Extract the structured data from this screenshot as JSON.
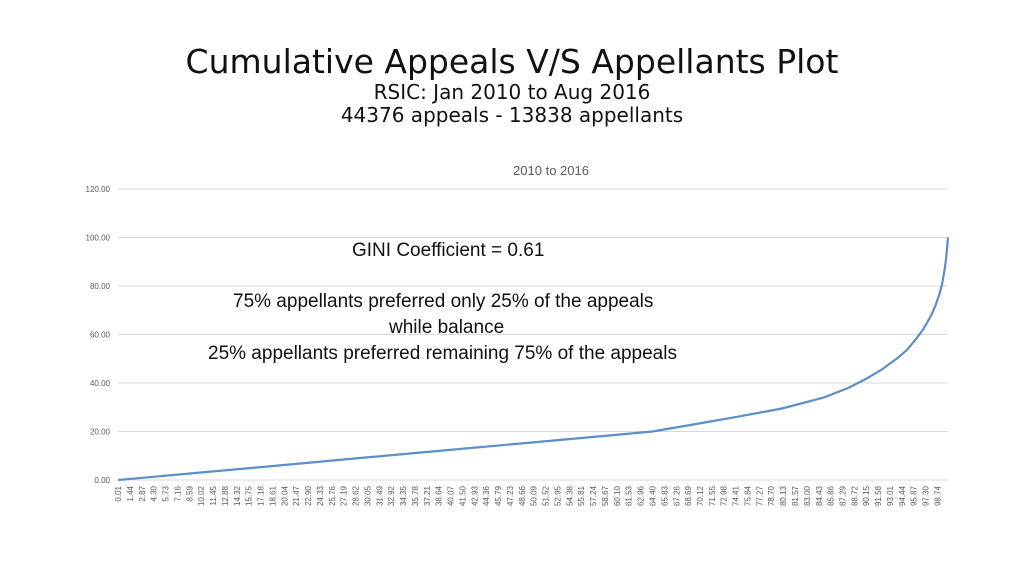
{
  "slide": {
    "title": "Cumulative Appeals V/S Appellants Plot",
    "subtitle_line1": "RSIC: Jan 2010 to Aug 2016",
    "subtitle_line2": "44376 appeals - 13838 appellants"
  },
  "annotations": {
    "gini": "GINI Coefficient = 0.61",
    "line1": "75% appellants preferred only 25% of the appeals",
    "line2": "while balance",
    "line3": "25% appellants preferred remaining 75% of the appeals"
  },
  "colors": {
    "line": "#5b8fc7",
    "grid": "#d9d9d9",
    "axis_text": "#595959"
  },
  "chart_data": {
    "type": "line",
    "title": "2010 to 2016",
    "xlabel": "",
    "ylabel": "",
    "ylim": [
      0,
      120
    ],
    "yticks": [
      "0.00",
      "20.00",
      "40.00",
      "60.00",
      "80.00",
      "100.00",
      "120.00"
    ],
    "grid": true,
    "x_tick_labels": [
      "0.01",
      "1.44",
      "2.87",
      "4.30",
      "5.73",
      "7.16",
      "8.59",
      "10.02",
      "11.45",
      "12.88",
      "14.32",
      "15.75",
      "17.18",
      "18.61",
      "20.04",
      "21.47",
      "22.90",
      "24.33",
      "25.76",
      "27.19",
      "28.62",
      "30.05",
      "31.49",
      "32.92",
      "34.35",
      "35.78",
      "37.21",
      "38.64",
      "40.07",
      "41.50",
      "42.93",
      "44.36",
      "45.79",
      "47.23",
      "48.66",
      "50.09",
      "51.52",
      "52.95",
      "54.38",
      "55.81",
      "57.24",
      "58.67",
      "60.10",
      "61.53",
      "62.96",
      "64.40",
      "65.83",
      "67.26",
      "68.69",
      "70.12",
      "71.55",
      "72.98",
      "74.41",
      "75.84",
      "77.27",
      "78.70",
      "80.13",
      "81.57",
      "83.00",
      "84.43",
      "85.86",
      "87.29",
      "88.72",
      "90.15",
      "91.58",
      "93.01",
      "94.44",
      "95.87",
      "97.30",
      "98.74"
    ],
    "series": [
      {
        "x": [
          0.01,
          10,
          20,
          30,
          40,
          50,
          60,
          64.4,
          70,
          75,
          80,
          85,
          88,
          90,
          92,
          94,
          95,
          96,
          97,
          98,
          98.5,
          99,
          99.3,
          99.6,
          99.8,
          100
        ],
        "y": [
          0,
          3.1,
          6.2,
          9.3,
          12.4,
          15.5,
          18.6,
          20,
          23.3,
          26.3,
          29.5,
          34,
          38,
          41.5,
          45.5,
          50.5,
          53.5,
          57.5,
          62,
          68,
          72,
          77,
          81,
          87,
          92,
          100
        ]
      }
    ]
  }
}
